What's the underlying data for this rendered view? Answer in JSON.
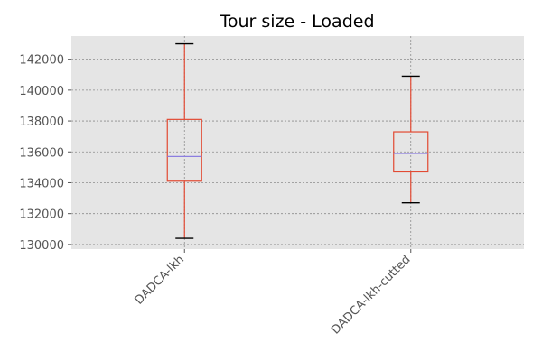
{
  "chart_data": {
    "type": "box",
    "title": "Tour size - Loaded",
    "xlabel": "",
    "ylabel": "",
    "ylim": [
      129700,
      143500
    ],
    "yticks": [
      130000,
      132000,
      134000,
      136000,
      138000,
      140000,
      142000
    ],
    "grid": true,
    "categories": [
      "DADCA-lkh",
      "DADCA-lkh-cutted"
    ],
    "boxes": [
      {
        "label": "DADCA-lkh",
        "whislo": 130400,
        "q1": 134100,
        "med": 135700,
        "q3": 138100,
        "whishi": 143000
      },
      {
        "label": "DADCA-lkh-cutted",
        "whislo": 132700,
        "q1": 134700,
        "med": 135900,
        "q3": 137300,
        "whishi": 140900
      }
    ],
    "colors": {
      "box": "#e24a33",
      "median": "#8c7ee0",
      "cap": "#000000",
      "plot_bg": "#e5e5e5",
      "grid": "#8c8c8c"
    }
  }
}
